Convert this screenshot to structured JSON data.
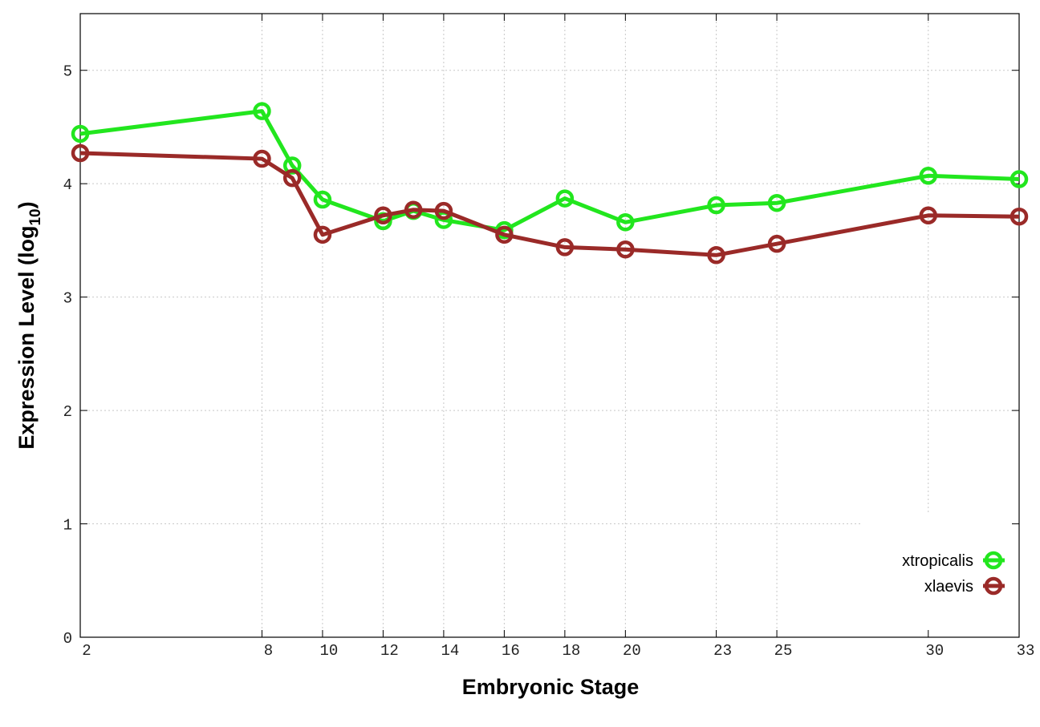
{
  "chart_data": {
    "type": "line",
    "x_label": "Embryonic Stage",
    "y_label": {
      "text": "Expression Level (log",
      "subscript": "10",
      "close": ")"
    },
    "x": [
      2,
      8,
      9,
      10,
      12,
      13,
      14,
      16,
      18,
      20,
      23,
      25,
      30,
      33
    ],
    "series": [
      {
        "name": "xtropicalis",
        "color": "#22e61e",
        "values": [
          4.44,
          4.64,
          4.16,
          3.86,
          3.67,
          3.76,
          3.68,
          3.59,
          3.87,
          3.66,
          3.81,
          3.83,
          4.07,
          4.04
        ]
      },
      {
        "name": "xlaevis",
        "color": "#9a2a28",
        "values": [
          4.27,
          4.22,
          4.05,
          3.55,
          3.72,
          3.77,
          3.76,
          3.55,
          3.44,
          3.42,
          3.37,
          3.47,
          3.72,
          3.71
        ]
      }
    ],
    "xlim": [
      2,
      33
    ],
    "xticks": [
      2,
      8,
      10,
      12,
      14,
      16,
      18,
      20,
      23,
      25,
      30,
      33
    ],
    "ylim": [
      0,
      5.5
    ],
    "yticks": [
      0,
      1,
      2,
      3,
      4,
      5
    ],
    "grid": true,
    "legend": "lower right"
  }
}
